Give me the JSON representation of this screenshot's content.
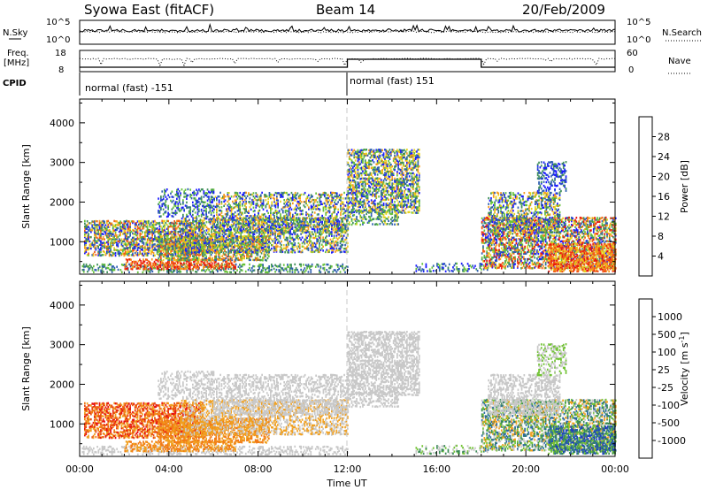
{
  "header": {
    "title": "Syowa East (fitACF)",
    "beam": "Beam 14",
    "date": "20/Feb/2009"
  },
  "top_panels": {
    "nsky_label": "N.Sky",
    "nsearch_label": "N.Search",
    "scale_hi": "10^5",
    "scale_lo": "10^0",
    "freq_label_1": "Freq.",
    "freq_label_2": "[MHz]",
    "freq_hi": "18",
    "freq_lo": "8",
    "nave_label": "Nave",
    "nave_hi": "60",
    "nave_lo": "0",
    "cpid_label": "CPID",
    "cpid_left": "normal (fast) -151",
    "cpid_right": "normal (fast) 151"
  },
  "chart_data": [
    {
      "type": "heatmap",
      "title": "",
      "ylabel": "Slant Range [km]",
      "xlabel": "",
      "ylim": [
        180,
        4600
      ],
      "yticks": [
        1000,
        2000,
        3000,
        4000
      ],
      "xlim": [
        "00:00",
        "24:00"
      ],
      "colorbar": {
        "label": "Power [dB]",
        "ticks": [
          "4",
          "8",
          "12",
          "16",
          "20",
          "24",
          "28"
        ],
        "colors": [
          "#1a1aff",
          "#2e5fb0",
          "#3f8f5a",
          "#66c23a",
          "#e6d21e",
          "#f59a1e",
          "#f25a16",
          "#e81810"
        ]
      }
    },
    {
      "type": "heatmap",
      "title": "",
      "ylabel": "Slant Range [km]",
      "xlabel": "Time UT",
      "ylim": [
        180,
        4600
      ],
      "yticks": [
        1000,
        2000,
        3000,
        4000
      ],
      "xticks": [
        "00:00",
        "04:00",
        "08:00",
        "12:00",
        "16:00",
        "20:00",
        "00:00"
      ],
      "colorbar": {
        "label": "Velocity",
        "unit_label": "[m s",
        "unit_exp": "-1",
        "unit_close": "]",
        "ticks": [
          "1000",
          "500",
          "100",
          "25",
          "-25",
          "-100",
          "-500",
          "-1000"
        ],
        "colors": [
          "#1f3ec0",
          "#2a6aa0",
          "#3a8a55",
          "#72c335",
          "#c8c8c8",
          "#f0a020",
          "#f27a16",
          "#e84a12",
          "#e81010"
        ]
      }
    }
  ]
}
